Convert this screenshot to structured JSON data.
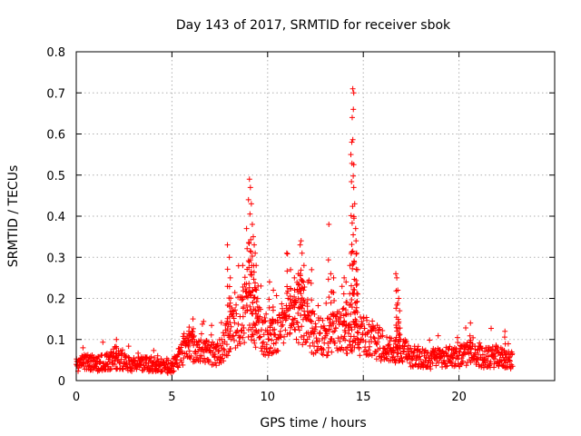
{
  "chart_data": {
    "type": "scatter",
    "title": "Day 143 of 2017, SRMTID for receiver sbok",
    "xlabel": "GPS time / hours",
    "ylabel": "SRMTID / TECUs",
    "xlim": [
      0,
      25
    ],
    "ylim": [
      0,
      0.8
    ],
    "x_ticks": [
      0,
      5,
      10,
      15,
      20
    ],
    "x_tick_labels": [
      "0",
      "5",
      "10",
      "15",
      "20"
    ],
    "y_ticks": [
      0,
      0.1,
      0.2,
      0.3,
      0.4,
      0.5,
      0.6,
      0.7,
      0.8
    ],
    "y_tick_labels": [
      "0",
      "0.1",
      "0.2",
      "0.3",
      "0.4",
      "0.5",
      "0.6",
      "0.7",
      "0.8"
    ],
    "grid": true,
    "marker": "+",
    "color": "#ff0000",
    "data_range_hours": [
      0,
      22.8
    ],
    "baseline_envelope": [
      [
        0.0,
        0.04
      ],
      [
        0.5,
        0.045
      ],
      [
        1.0,
        0.04
      ],
      [
        1.5,
        0.045
      ],
      [
        2.0,
        0.05
      ],
      [
        2.5,
        0.045
      ],
      [
        3.0,
        0.04
      ],
      [
        3.5,
        0.04
      ],
      [
        4.0,
        0.04
      ],
      [
        4.5,
        0.035
      ],
      [
        5.0,
        0.03
      ],
      [
        5.5,
        0.065
      ],
      [
        6.0,
        0.085
      ],
      [
        6.5,
        0.07
      ],
      [
        7.0,
        0.07
      ],
      [
        7.5,
        0.06
      ],
      [
        8.0,
        0.12
      ],
      [
        8.5,
        0.15
      ],
      [
        9.0,
        0.17
      ],
      [
        9.5,
        0.13
      ],
      [
        10.0,
        0.1
      ],
      [
        10.5,
        0.11
      ],
      [
        11.0,
        0.15
      ],
      [
        11.5,
        0.17
      ],
      [
        12.0,
        0.14
      ],
      [
        12.5,
        0.11
      ],
      [
        13.0,
        0.1
      ],
      [
        13.5,
        0.12
      ],
      [
        14.0,
        0.12
      ],
      [
        14.5,
        0.1
      ],
      [
        15.0,
        0.11
      ],
      [
        15.5,
        0.1
      ],
      [
        16.0,
        0.085
      ],
      [
        16.5,
        0.07
      ],
      [
        17.0,
        0.07
      ],
      [
        17.5,
        0.06
      ],
      [
        18.0,
        0.055
      ],
      [
        18.5,
        0.05
      ],
      [
        19.0,
        0.055
      ],
      [
        19.5,
        0.06
      ],
      [
        20.0,
        0.06
      ],
      [
        20.5,
        0.065
      ],
      [
        21.0,
        0.06
      ],
      [
        21.5,
        0.055
      ],
      [
        22.0,
        0.06
      ],
      [
        22.5,
        0.05
      ],
      [
        22.8,
        0.045
      ]
    ],
    "spikes": [
      [
        2.1,
        0.1
      ],
      [
        5.9,
        0.13
      ],
      [
        6.1,
        0.15
      ],
      [
        7.9,
        0.33
      ],
      [
        8.0,
        0.3
      ],
      [
        8.05,
        0.25
      ],
      [
        8.7,
        0.28
      ],
      [
        8.9,
        0.37
      ],
      [
        9.0,
        0.44
      ],
      [
        9.05,
        0.49
      ],
      [
        9.1,
        0.47
      ],
      [
        9.15,
        0.43
      ],
      [
        9.2,
        0.38
      ],
      [
        9.25,
        0.35
      ],
      [
        9.3,
        0.33
      ],
      [
        9.35,
        0.31
      ],
      [
        9.4,
        0.28
      ],
      [
        9.5,
        0.23
      ],
      [
        10.1,
        0.24
      ],
      [
        10.3,
        0.22
      ],
      [
        11.0,
        0.31
      ],
      [
        11.2,
        0.27
      ],
      [
        11.4,
        0.25
      ],
      [
        11.6,
        0.26
      ],
      [
        11.7,
        0.33
      ],
      [
        11.75,
        0.34
      ],
      [
        11.8,
        0.31
      ],
      [
        11.9,
        0.28
      ],
      [
        12.1,
        0.24
      ],
      [
        12.3,
        0.27
      ],
      [
        13.2,
        0.38
      ],
      [
        13.3,
        0.26
      ],
      [
        13.45,
        0.25
      ],
      [
        14.0,
        0.25
      ],
      [
        14.1,
        0.24
      ],
      [
        14.3,
        0.28
      ],
      [
        14.35,
        0.55
      ],
      [
        14.4,
        0.58
      ],
      [
        14.45,
        0.71
      ],
      [
        14.5,
        0.7
      ],
      [
        14.48,
        0.66
      ],
      [
        14.42,
        0.64
      ],
      [
        14.5,
        0.47
      ],
      [
        14.55,
        0.43
      ],
      [
        14.6,
        0.37
      ],
      [
        14.62,
        0.34
      ],
      [
        14.65,
        0.31
      ],
      [
        14.7,
        0.27
      ],
      [
        16.7,
        0.26
      ],
      [
        16.75,
        0.25
      ],
      [
        16.8,
        0.22
      ],
      [
        16.85,
        0.2
      ],
      [
        16.9,
        0.17
      ],
      [
        20.6,
        0.14
      ],
      [
        22.4,
        0.12
      ]
    ]
  }
}
